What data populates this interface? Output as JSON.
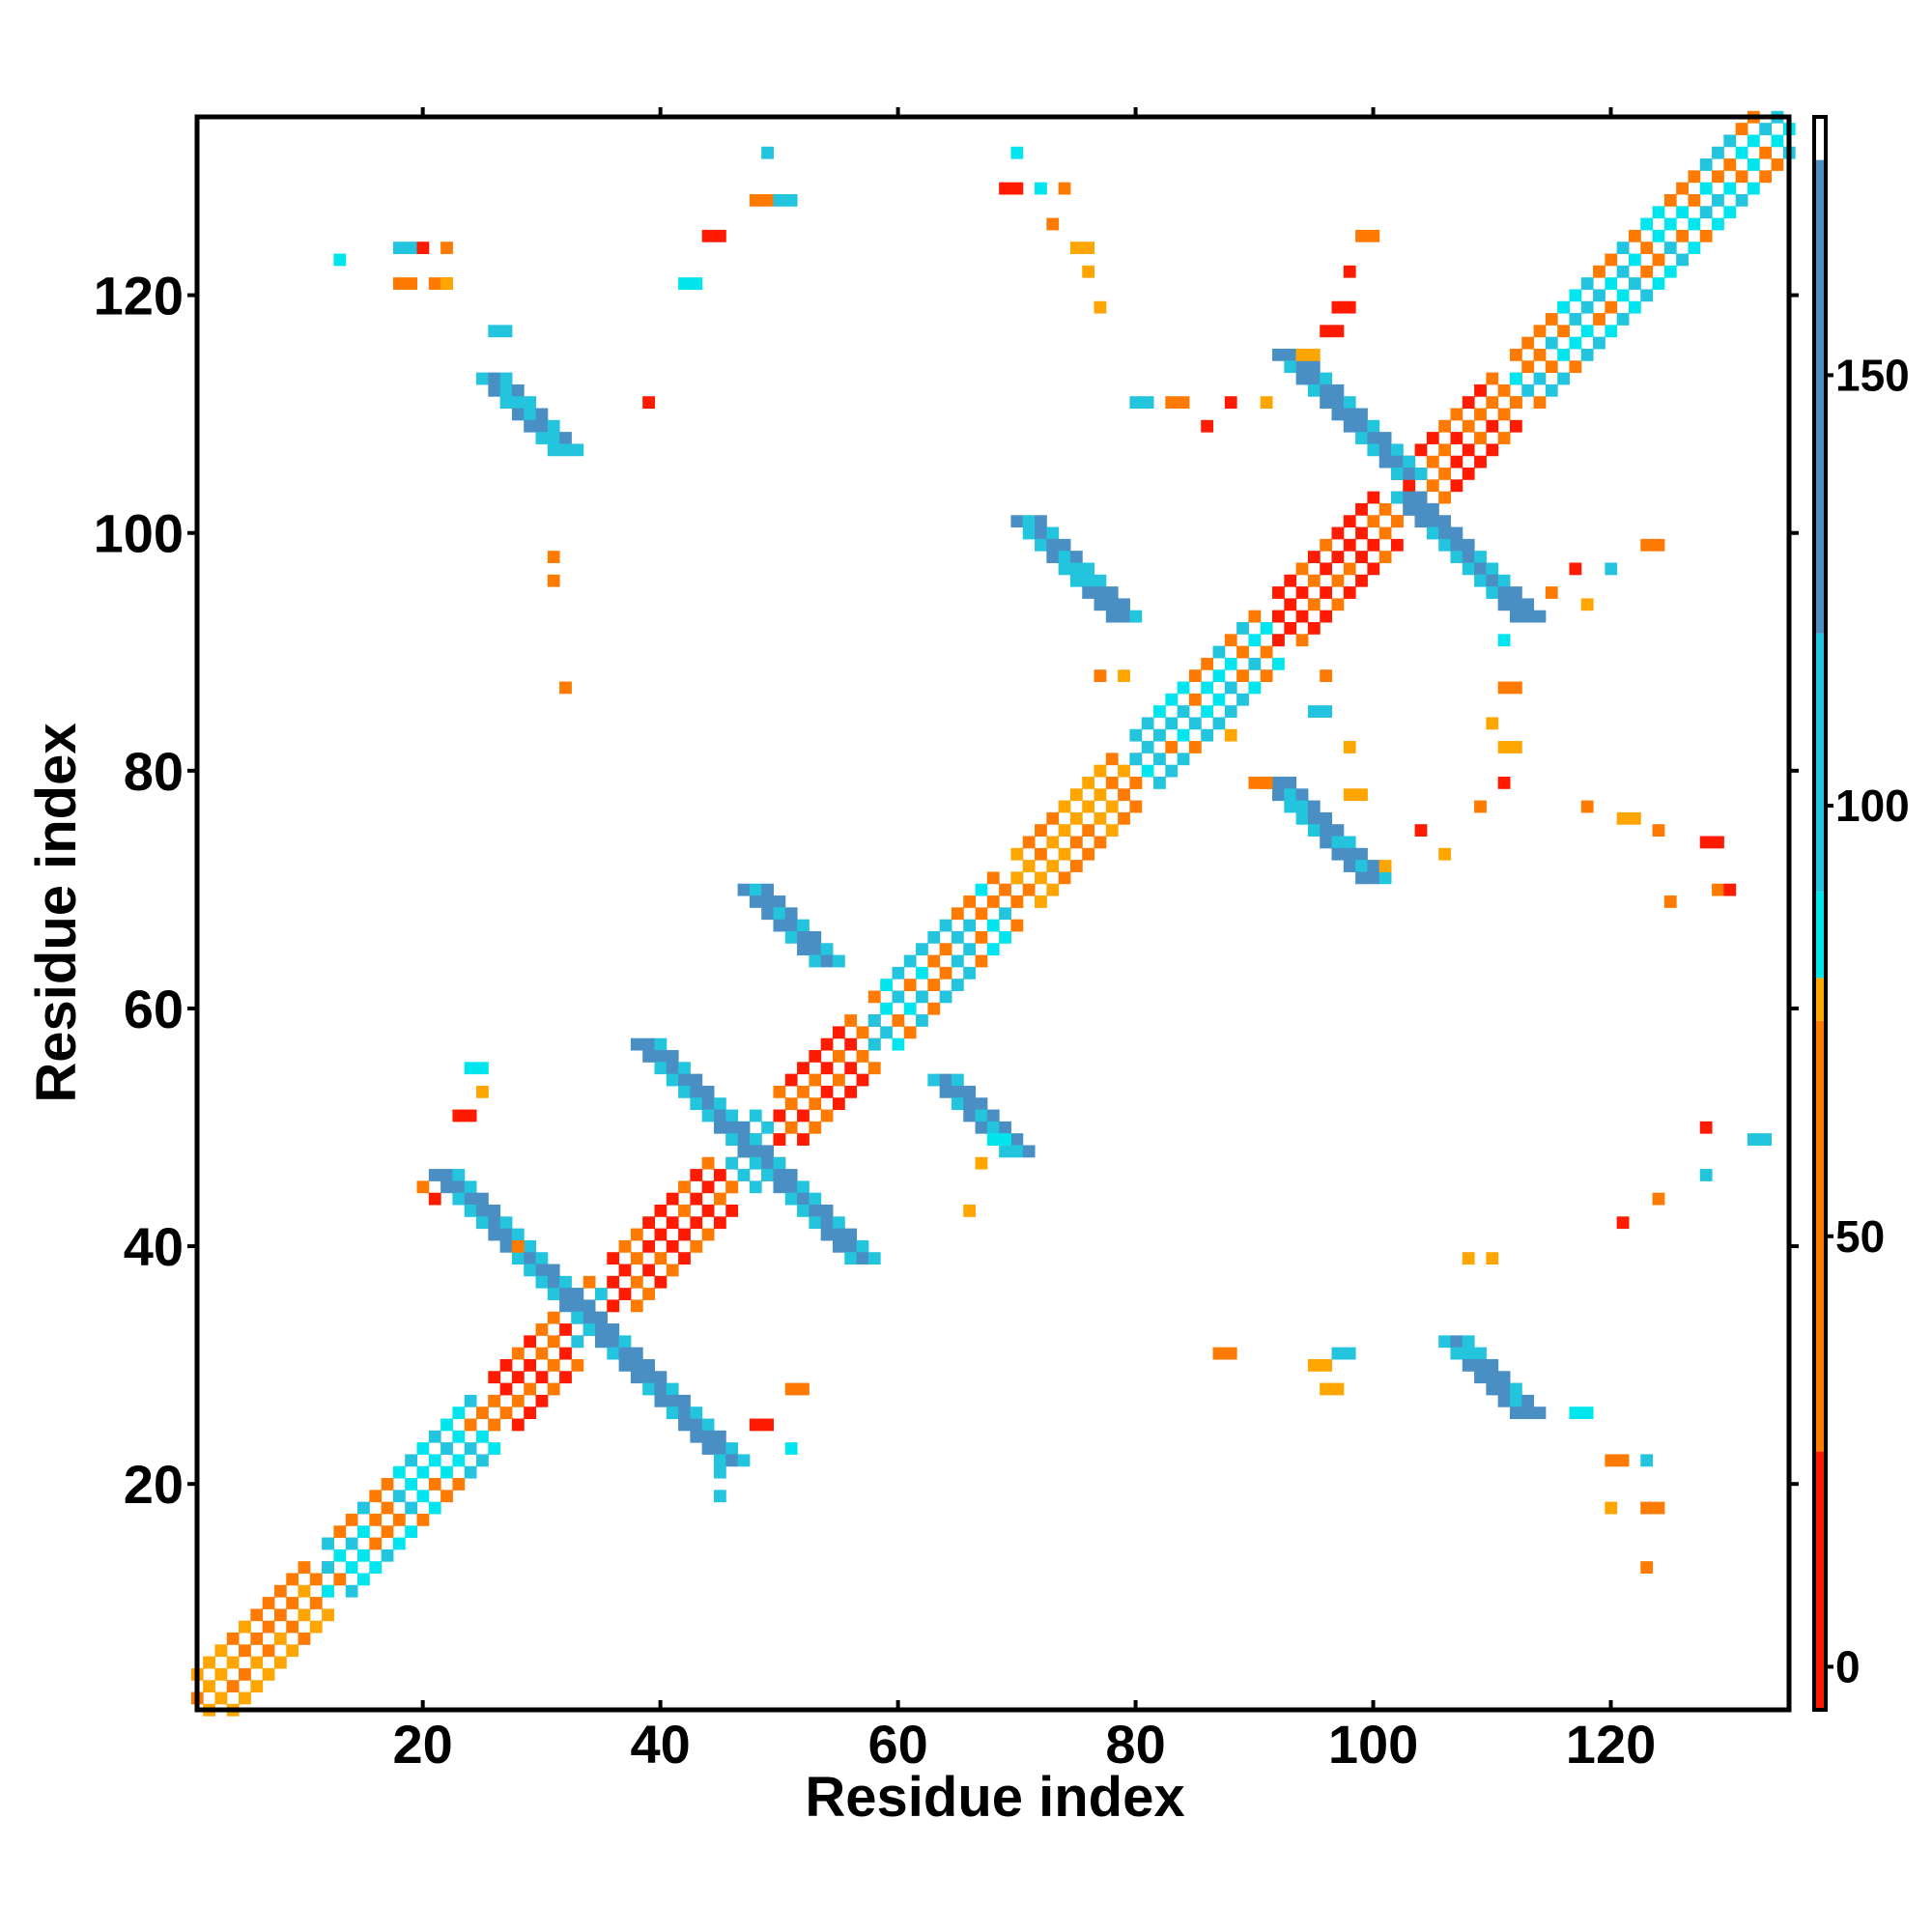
{
  "chart_data": {
    "type": "heatmap",
    "title": "",
    "xlabel": "Residue index",
    "ylabel": "Residue index",
    "xlim": [
      1,
      135
    ],
    "ylim": [
      1,
      135
    ],
    "x_ticks": [
      20,
      40,
      60,
      80,
      100,
      120
    ],
    "y_ticks": [
      20,
      40,
      60,
      80,
      100,
      120
    ],
    "colorbar": {
      "ticks": [
        0,
        50,
        100,
        150
      ],
      "range": [
        -5,
        180
      ],
      "bands": [
        {
          "from": -5,
          "to": 25,
          "color": "#ff1a00"
        },
        {
          "from": 25,
          "to": 75,
          "color": "#ff7a00"
        },
        {
          "from": 75,
          "to": 80,
          "color": "#ffa500"
        },
        {
          "from": 80,
          "to": 90,
          "color": "#00e5ee"
        },
        {
          "from": 90,
          "to": 120,
          "color": "#22c4de"
        },
        {
          "from": 120,
          "to": 175,
          "color": "#4a8fc4"
        },
        {
          "from": 175,
          "to": 180,
          "color": "#ffffff"
        }
      ]
    },
    "cell_colors": [
      "#ff1a00",
      "#ff7a00",
      "#ffa500",
      "#00e5ee",
      "#22c4de",
      "#4a8fc4"
    ],
    "diagonal_pattern": "orange/white/red checkered band along the main diagonal with cyan blocks",
    "blocks": [
      {
        "x": [
          1,
          12
        ],
        "y": [
          1,
          12
        ],
        "kind": "diag-orange"
      },
      {
        "x": [
          12,
          26
        ],
        "y": [
          12,
          26
        ],
        "kind": "diag-cyan"
      },
      {
        "x": [
          26,
          33
        ],
        "y": [
          26,
          33
        ],
        "kind": "diag-red"
      },
      {
        "x": [
          33,
          36
        ],
        "y": [
          33,
          36
        ],
        "kind": "diag-cyan"
      },
      {
        "x": [
          36,
          46
        ],
        "y": [
          36,
          46
        ],
        "kind": "diag-red"
      },
      {
        "x": [
          46,
          50
        ],
        "y": [
          46,
          50
        ],
        "kind": "diag-cyan"
      },
      {
        "x": [
          50,
          58
        ],
        "y": [
          50,
          58
        ],
        "kind": "diag-red"
      },
      {
        "x": [
          58,
          70
        ],
        "y": [
          58,
          70
        ],
        "kind": "diag-cyan"
      },
      {
        "x": [
          70,
          80
        ],
        "y": [
          70,
          80
        ],
        "kind": "diag-orange"
      },
      {
        "x": [
          80,
          92
        ],
        "y": [
          80,
          92
        ],
        "kind": "diag-cyan"
      },
      {
        "x": [
          92,
          102
        ],
        "y": [
          92,
          102
        ],
        "kind": "diag-red"
      },
      {
        "x": [
          102,
          112
        ],
        "y": [
          102,
          112
        ],
        "kind": "diag-red"
      },
      {
        "x": [
          112,
          135
        ],
        "y": [
          112,
          135
        ],
        "kind": "diag-cyan"
      },
      {
        "x": [
          22,
          34
        ],
        "y": [
          34,
          46
        ],
        "kind": "anti-blue"
      },
      {
        "x": [
          34,
          46
        ],
        "y": [
          22,
          34
        ],
        "kind": "anti-blue"
      },
      {
        "x": [
          39,
          48
        ],
        "y": [
          48,
          57
        ],
        "kind": "anti-blue"
      },
      {
        "x": [
          48,
          57
        ],
        "y": [
          39,
          48
        ],
        "kind": "anti-blue"
      },
      {
        "x": [
          93,
          103
        ],
        "y": [
          103,
          115
        ],
        "kind": "anti-blue"
      },
      {
        "x": [
          103,
          115
        ],
        "y": [
          93,
          103
        ],
        "kind": "anti-blue"
      },
      {
        "x": [
          26,
          32
        ],
        "y": [
          107,
          113
        ],
        "kind": "para-blue"
      },
      {
        "x": [
          107,
          113
        ],
        "y": [
          26,
          32
        ],
        "kind": "para-blue"
      },
      {
        "x": [
          48,
          54
        ],
        "y": [
          64,
          70
        ],
        "kind": "para-blue"
      },
      {
        "x": [
          64,
          70
        ],
        "y": [
          48,
          54
        ],
        "kind": "para-blue"
      },
      {
        "x": [
          71,
          79
        ],
        "y": [
          92,
          101
        ],
        "kind": "para-blue"
      },
      {
        "x": [
          92,
          101
        ],
        "y": [
          71,
          79
        ],
        "kind": "para-blue"
      }
    ],
    "grid": false,
    "legend": "colorbar-right"
  }
}
